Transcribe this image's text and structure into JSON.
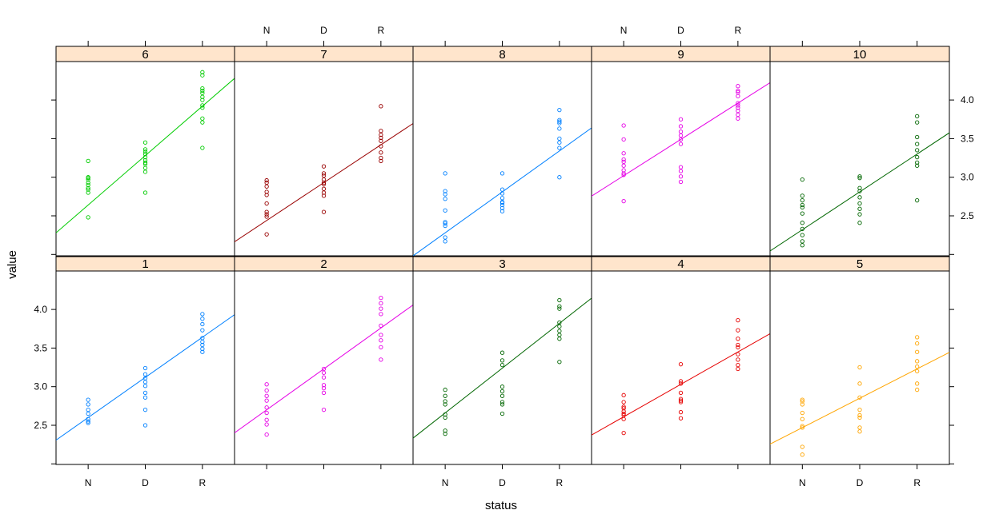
{
  "chart_data": {
    "type": "scatter",
    "xlabel": "status",
    "ylabel": "value",
    "categories": [
      "N",
      "D",
      "R"
    ],
    "ylim": [
      2.0,
      4.5
    ],
    "yticks": [
      "2.5",
      "3.0",
      "3.5",
      "4.0"
    ],
    "strip_color": "#ffe5cc",
    "panels": [
      {
        "name": "6",
        "color": "#00cc00",
        "fit": {
          "intercept": 2.0,
          "slope": 0.64
        },
        "points": {
          "N": [
            2.48,
            2.8,
            2.84,
            2.86,
            2.9,
            2.93,
            2.97,
            2.99,
            3.0,
            3.21
          ],
          "D": [
            2.8,
            3.07,
            3.12,
            3.17,
            3.19,
            3.22,
            3.26,
            3.3,
            3.33,
            3.36,
            3.45
          ],
          "R": [
            3.38,
            3.71,
            3.76,
            3.9,
            3.93,
            4.0,
            4.04,
            4.09,
            4.12,
            4.15,
            4.32,
            4.36
          ]
        }
      },
      {
        "name": "7",
        "color": "#990000",
        "fit": {
          "intercept": 1.95,
          "slope": 0.49
        },
        "points": {
          "N": [
            2.26,
            2.49,
            2.52,
            2.55,
            2.66,
            2.77,
            2.81,
            2.88,
            2.93,
            2.96
          ],
          "D": [
            2.55,
            2.76,
            2.8,
            2.85,
            2.91,
            2.93,
            2.97,
            3.02,
            3.05,
            3.14
          ],
          "R": [
            3.21,
            3.25,
            3.32,
            3.4,
            3.47,
            3.51,
            3.55,
            3.6,
            3.92
          ]
        }
      },
      {
        "name": "8",
        "color": "#0080ff",
        "fit": {
          "intercept": 1.75,
          "slope": 0.53
        },
        "points": {
          "N": [
            2.17,
            2.22,
            2.37,
            2.4,
            2.42,
            2.57,
            2.72,
            2.78,
            2.82,
            3.05
          ],
          "D": [
            2.56,
            2.6,
            2.64,
            2.67,
            2.68,
            2.73,
            2.79,
            2.84,
            3.05
          ],
          "R": [
            3.0,
            3.38,
            3.45,
            3.5,
            3.63,
            3.7,
            3.72,
            3.74,
            3.87
          ]
        }
      },
      {
        "name": "9",
        "color": "#e600e6",
        "fit": {
          "intercept": 2.55,
          "slope": 0.47
        },
        "points": {
          "N": [
            2.69,
            3.03,
            3.05,
            3.09,
            3.15,
            3.2,
            3.23,
            3.31,
            3.49,
            3.67
          ],
          "D": [
            2.94,
            3.01,
            3.08,
            3.13,
            3.43,
            3.49,
            3.54,
            3.59,
            3.66,
            3.75
          ],
          "R": [
            3.76,
            3.81,
            3.86,
            3.9,
            3.93,
            3.96,
            4.05,
            4.1,
            4.12,
            4.18
          ]
        }
      },
      {
        "name": "10",
        "color": "#006600",
        "fit": {
          "intercept": 1.83,
          "slope": 0.49
        },
        "points": {
          "N": [
            2.12,
            2.17,
            2.25,
            2.33,
            2.41,
            2.53,
            2.61,
            2.64,
            2.7,
            2.76,
            2.97
          ],
          "D": [
            2.41,
            2.52,
            2.59,
            2.66,
            2.74,
            2.82,
            2.86,
            2.99,
            3.01
          ],
          "R": [
            2.7,
            3.15,
            3.19,
            3.26,
            3.35,
            3.43,
            3.52,
            3.71,
            3.79
          ]
        }
      },
      {
        "name": "1",
        "color": "#0080ff",
        "fit": {
          "intercept": 2.08,
          "slope": 0.52
        },
        "points": {
          "N": [
            2.53,
            2.55,
            2.58,
            2.65,
            2.7,
            2.77,
            2.83
          ],
          "D": [
            2.5,
            2.7,
            2.86,
            2.92,
            3.01,
            3.06,
            3.11,
            3.16,
            3.24
          ],
          "R": [
            3.45,
            3.49,
            3.54,
            3.58,
            3.63,
            3.73,
            3.81,
            3.88,
            3.94
          ]
        }
      },
      {
        "name": "2",
        "color": "#e600e6",
        "fit": {
          "intercept": 2.17,
          "slope": 0.53
        },
        "points": {
          "N": [
            2.38,
            2.51,
            2.57,
            2.66,
            2.73,
            2.82,
            2.88,
            2.95,
            3.03
          ],
          "D": [
            2.7,
            2.92,
            2.98,
            3.02,
            3.12,
            3.18,
            3.23
          ],
          "R": [
            3.35,
            3.51,
            3.6,
            3.67,
            3.79,
            3.94,
            4.01,
            4.08,
            4.15
          ]
        }
      },
      {
        "name": "3",
        "color": "#006600",
        "fit": {
          "intercept": 2.08,
          "slope": 0.58
        },
        "points": {
          "N": [
            2.39,
            2.43,
            2.6,
            2.64,
            2.77,
            2.81,
            2.88,
            2.96
          ],
          "D": [
            2.65,
            2.77,
            2.8,
            2.88,
            2.94,
            3.0,
            3.28,
            3.34,
            3.44
          ],
          "R": [
            3.32,
            3.62,
            3.67,
            3.72,
            3.78,
            3.83,
            4.01,
            4.04,
            4.12
          ]
        }
      },
      {
        "name": "4",
        "color": "#e60000",
        "fit": {
          "intercept": 2.19,
          "slope": 0.42
        },
        "points": {
          "N": [
            2.4,
            2.58,
            2.63,
            2.65,
            2.68,
            2.72,
            2.74,
            2.8,
            2.89
          ],
          "D": [
            2.59,
            2.67,
            2.8,
            2.82,
            2.84,
            2.92,
            3.04,
            3.07,
            3.29
          ],
          "R": [
            3.23,
            3.28,
            3.35,
            3.42,
            3.51,
            3.54,
            3.62,
            3.73,
            3.86
          ]
        }
      },
      {
        "name": "5",
        "color": "#ffa500",
        "fit": {
          "intercept": 2.09,
          "slope": 0.38
        },
        "points": {
          "N": [
            2.12,
            2.22,
            2.47,
            2.49,
            2.58,
            2.66,
            2.77,
            2.81,
            2.83
          ],
          "D": [
            2.42,
            2.47,
            2.6,
            2.63,
            2.7,
            2.86,
            3.04,
            3.25
          ],
          "R": [
            2.96,
            3.04,
            3.2,
            3.26,
            3.33,
            3.45,
            3.56,
            3.64
          ]
        }
      }
    ]
  }
}
